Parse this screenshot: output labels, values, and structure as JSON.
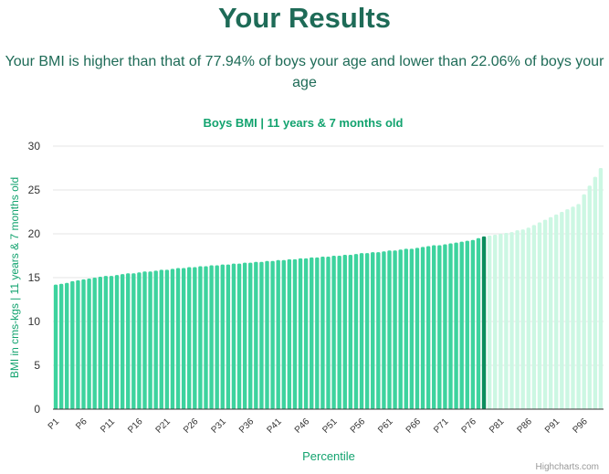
{
  "header": {
    "title": "Your Results",
    "summary": "Your BMI is higher than that of 77.94% of boys your age and lower than 22.06% of boys your age"
  },
  "chart_data": {
    "type": "bar",
    "title": "Boys BMI | 11 years & 7 months old",
    "xlabel": "Percentile",
    "ylabel": "BMI in cms-kgs | 11 years & 7 months old",
    "ylim": [
      0,
      30
    ],
    "yticks": [
      0,
      5,
      10,
      15,
      20,
      25,
      30
    ],
    "grid": true,
    "legend": "none",
    "credits": "Highcharts.com",
    "highlight_category": "P78",
    "categories": [
      "P1",
      "P2",
      "P3",
      "P4",
      "P5",
      "P6",
      "P7",
      "P8",
      "P9",
      "P10",
      "P11",
      "P12",
      "P13",
      "P14",
      "P15",
      "P16",
      "P17",
      "P18",
      "P19",
      "P20",
      "P21",
      "P22",
      "P23",
      "P24",
      "P25",
      "P26",
      "P27",
      "P28",
      "P29",
      "P30",
      "P31",
      "P32",
      "P33",
      "P34",
      "P35",
      "P36",
      "P37",
      "P38",
      "P39",
      "P40",
      "P41",
      "P42",
      "P43",
      "P44",
      "P45",
      "P46",
      "P47",
      "P48",
      "P49",
      "P50",
      "P51",
      "P52",
      "P53",
      "P54",
      "P55",
      "P56",
      "P57",
      "P58",
      "P59",
      "P60",
      "P61",
      "P62",
      "P63",
      "P64",
      "P65",
      "P66",
      "P67",
      "P68",
      "P69",
      "P70",
      "P71",
      "P72",
      "P73",
      "P74",
      "P75",
      "P76",
      "P77",
      "P78",
      "P79",
      "P80",
      "P81",
      "P82",
      "P83",
      "P84",
      "P85",
      "P86",
      "P87",
      "P88",
      "P89",
      "P90",
      "P91",
      "P92",
      "P93",
      "P94",
      "P95",
      "P96",
      "P97",
      "P98",
      "P99"
    ],
    "tick_labels": [
      "P1",
      "P6",
      "P11",
      "P16",
      "P21",
      "P26",
      "P31",
      "P36",
      "P41",
      "P46",
      "P51",
      "P56",
      "P61",
      "P66",
      "P71",
      "P76",
      "P81",
      "P86",
      "P91",
      "P96"
    ],
    "values": [
      14.2,
      14.3,
      14.4,
      14.6,
      14.7,
      14.8,
      14.9,
      15.0,
      15.1,
      15.2,
      15.2,
      15.3,
      15.4,
      15.5,
      15.5,
      15.6,
      15.7,
      15.7,
      15.8,
      15.9,
      15.9,
      16.0,
      16.1,
      16.1,
      16.2,
      16.2,
      16.3,
      16.3,
      16.4,
      16.4,
      16.5,
      16.5,
      16.6,
      16.6,
      16.7,
      16.7,
      16.8,
      16.8,
      16.9,
      16.9,
      17.0,
      17.0,
      17.1,
      17.1,
      17.2,
      17.2,
      17.3,
      17.3,
      17.4,
      17.4,
      17.5,
      17.5,
      17.6,
      17.6,
      17.7,
      17.8,
      17.8,
      17.9,
      17.9,
      18.0,
      18.1,
      18.1,
      18.2,
      18.3,
      18.3,
      18.4,
      18.5,
      18.6,
      18.7,
      18.7,
      18.8,
      18.9,
      19.0,
      19.1,
      19.2,
      19.3,
      19.5,
      19.7,
      19.8,
      19.9,
      20.0,
      20.1,
      20.2,
      20.4,
      20.5,
      20.7,
      21.0,
      21.3,
      21.6,
      21.9,
      22.2,
      22.5,
      22.8,
      23.1,
      23.4,
      24.5,
      25.5,
      26.5,
      27.5
    ],
    "colors": {
      "below": "#3dd39e",
      "highlight": "#0b8e5e",
      "above": "#ccf7e3",
      "heading": "#1e6b57",
      "chart_text": "#13a36f",
      "grid": "#e6e6e6",
      "axis_line": "#333333",
      "credits": "#999999"
    }
  }
}
